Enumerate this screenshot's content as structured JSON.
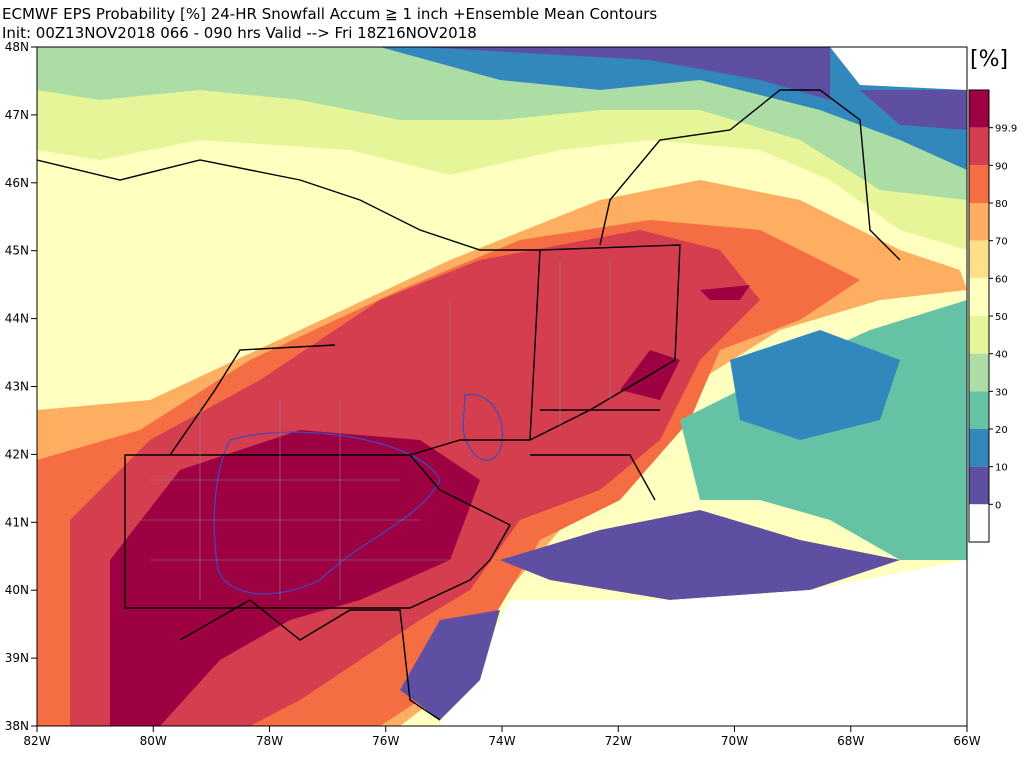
{
  "header": {
    "title": "ECMWF EPS Probability [%] 24-HR Snowfall Accum ≧ 1 inch  +Ensemble Mean Contours",
    "subtitle": "Init: 00Z13NOV2018   066 - 090 hrs Valid --> Fri 18Z16NOV2018"
  },
  "map": {
    "lat_labels": [
      "48N",
      "47N",
      "46N",
      "45N",
      "44N",
      "43N",
      "42N",
      "41N",
      "40N",
      "39N",
      "38N"
    ],
    "lon_labels": [
      "82W",
      "80W",
      "78W",
      "76W",
      "74W",
      "72W",
      "70W",
      "68W",
      "66W"
    ]
  },
  "colorbar": {
    "unit": "[%]",
    "labels": [
      "99.9",
      "90",
      "80",
      "70",
      "60",
      "50",
      "40",
      "30",
      "20",
      "10",
      "0"
    ],
    "colors": [
      "#9e0142",
      "#d53e4f",
      "#f46d43",
      "#fdae61",
      "#fee08b",
      "#ffffbf",
      "#e6f598",
      "#abdda4",
      "#66c2a5",
      "#3288bd",
      "#5e4fa2",
      "#ffffff"
    ]
  }
}
